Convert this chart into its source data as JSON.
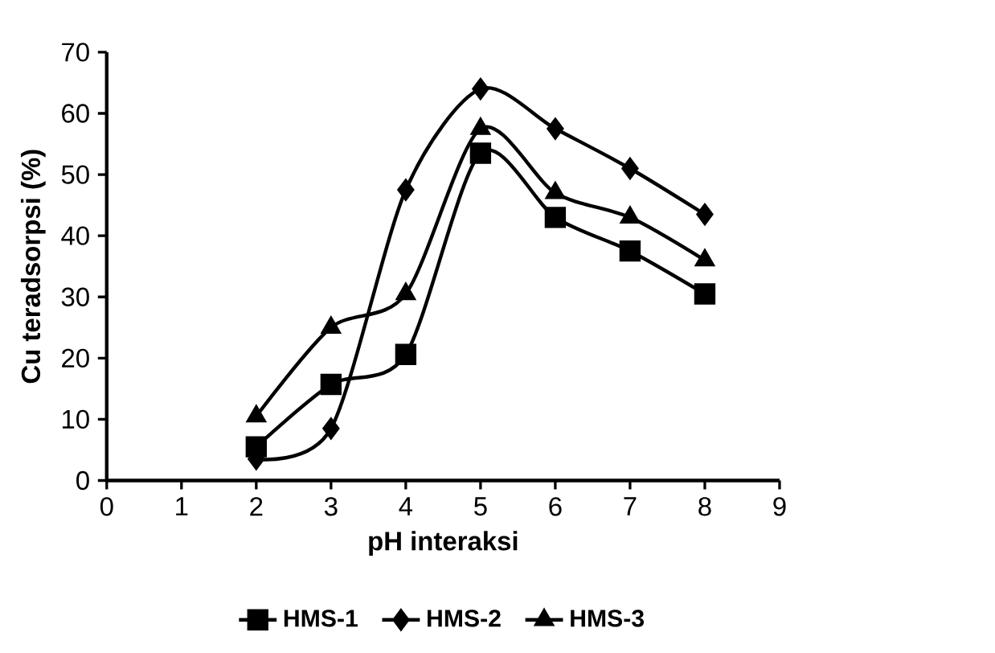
{
  "chart_data": {
    "type": "line",
    "xlabel": "pH interaksi",
    "ylabel": "Cu teradsorpsi (%)",
    "x": [
      2,
      3,
      4,
      5,
      6,
      7,
      8
    ],
    "series": [
      {
        "name": "HMS-1",
        "color": "#000000",
        "marker": "square",
        "values": [
          5.5,
          15.7,
          20.6,
          53.5,
          43,
          37.5,
          30.5
        ]
      },
      {
        "name": "HMS-2",
        "color": "#000000",
        "marker": "diamond",
        "values": [
          3.5,
          8.5,
          47.5,
          64,
          57.5,
          51,
          43.5
        ]
      },
      {
        "name": "HMS-3",
        "color": "#000000",
        "marker": "triangle",
        "values": [
          10.5,
          25,
          30.5,
          57.5,
          47,
          43,
          36
        ]
      }
    ],
    "xlim": [
      0,
      9
    ],
    "xticks": [
      0,
      1,
      2,
      3,
      4,
      5,
      6,
      7,
      8,
      9
    ],
    "ylim": [
      0,
      70
    ],
    "yticks": [
      0,
      10,
      20,
      30,
      40,
      50,
      60,
      70
    ],
    "grid": false,
    "legend": "bottom"
  }
}
